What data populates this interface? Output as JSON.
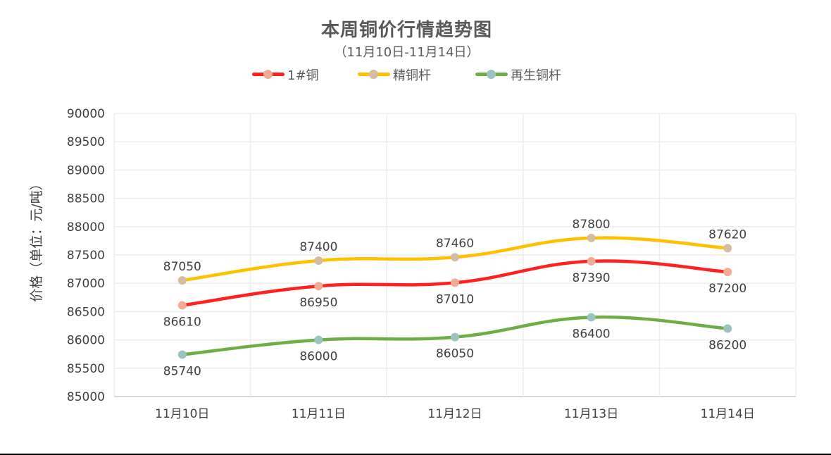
{
  "chart_data": {
    "type": "line",
    "title": "本周铜价行情趋势图",
    "subtitle": "（11月10日-11月14日）",
    "xlabel": "",
    "ylabel": "价格（单位：元/吨）",
    "categories": [
      "11月10日",
      "11月11日",
      "11月12日",
      "11月13日",
      "11月14日"
    ],
    "ylim": [
      85000,
      90000
    ],
    "yticks": [
      85000,
      85500,
      86000,
      86500,
      87000,
      87500,
      88000,
      88500,
      89000,
      89500,
      90000
    ],
    "grid": true,
    "legend_position": "top",
    "smooth": true,
    "series": [
      {
        "name": "1#铜",
        "line_color": "#FF2121",
        "marker_color": "#F4AB96",
        "label_position": "below",
        "values": [
          86610,
          86950,
          87010,
          87390,
          87200
        ]
      },
      {
        "name": "精铜杆",
        "line_color": "#FFC000",
        "marker_color": "#D5BE9F",
        "label_position": "above",
        "values": [
          87050,
          87400,
          87460,
          87800,
          87620
        ]
      },
      {
        "name": "再生铜杆",
        "line_color": "#70AD47",
        "marker_color": "#9BC4BE",
        "label_position": "below",
        "values": [
          85740,
          86000,
          86050,
          86400,
          86200
        ]
      }
    ]
  },
  "legend": [
    {
      "label": "1#铜"
    },
    {
      "label": "精铜杆"
    },
    {
      "label": "再生铜杆"
    }
  ],
  "colors": {
    "grid": "#EDEDED",
    "axis": "#D9D9D9",
    "text": "#404040",
    "title": "#595959"
  }
}
